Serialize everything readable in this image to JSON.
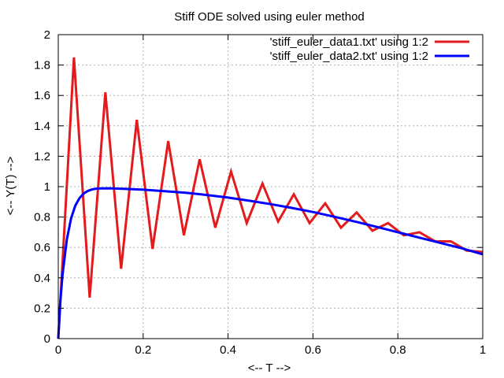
{
  "chart_data": {
    "type": "line",
    "title": "Stiff ODE solved using euler method",
    "xlabel": "<-- T -->",
    "ylabel": "<-- Y(T) -->",
    "xlim": [
      0,
      1
    ],
    "ylim": [
      0,
      2
    ],
    "xticks": [
      0,
      0.2,
      0.4,
      0.6,
      0.8,
      1
    ],
    "xtick_labels": [
      "0",
      "0.2",
      "0.4",
      "0.6",
      "0.8",
      "1"
    ],
    "yticks": [
      0,
      0.2,
      0.4,
      0.6,
      0.8,
      1,
      1.2,
      1.4,
      1.6,
      1.8,
      2
    ],
    "ytick_labels": [
      "0",
      "0.2",
      "0.4",
      "0.6",
      "0.8",
      "1",
      "1.2",
      "1.4",
      "1.6",
      "1.8",
      "2"
    ],
    "grid": true,
    "legend_position": "top-right",
    "series": [
      {
        "name": "'stiff_euler_data1.txt' using 1:2",
        "color": "#e41a1c",
        "x": [
          0,
          0.037,
          0.074,
          0.111,
          0.148,
          0.185,
          0.222,
          0.259,
          0.296,
          0.333,
          0.37,
          0.407,
          0.444,
          0.481,
          0.518,
          0.555,
          0.592,
          0.629,
          0.666,
          0.703,
          0.74,
          0.777,
          0.814,
          0.851,
          0.888,
          0.925,
          0.962,
          1.0
        ],
        "y": [
          0,
          1.85,
          0.27,
          1.62,
          0.46,
          1.44,
          0.59,
          1.3,
          0.68,
          1.18,
          0.73,
          1.1,
          0.76,
          1.02,
          0.77,
          0.95,
          0.76,
          0.89,
          0.73,
          0.83,
          0.71,
          0.76,
          0.68,
          0.7,
          0.64,
          0.64,
          0.58,
          0.57
        ]
      },
      {
        "name": "'stiff_euler_data2.txt' using 1:2",
        "color": "#0000ff",
        "x": [
          0,
          0.005,
          0.01,
          0.02,
          0.03,
          0.04,
          0.05,
          0.06,
          0.07,
          0.08,
          0.09,
          0.1,
          0.12,
          0.14,
          0.16,
          0.2,
          0.25,
          0.3,
          0.35,
          0.4,
          0.45,
          0.5,
          0.55,
          0.6,
          0.65,
          0.7,
          0.75,
          0.8,
          0.85,
          0.9,
          0.95,
          1.0
        ],
        "y": [
          0,
          0.25,
          0.42,
          0.65,
          0.79,
          0.875,
          0.925,
          0.955,
          0.972,
          0.982,
          0.987,
          0.988,
          0.989,
          0.987,
          0.985,
          0.98,
          0.97,
          0.96,
          0.945,
          0.928,
          0.907,
          0.885,
          0.86,
          0.833,
          0.802,
          0.77,
          0.735,
          0.7,
          0.665,
          0.63,
          0.595,
          0.555
        ]
      }
    ]
  }
}
